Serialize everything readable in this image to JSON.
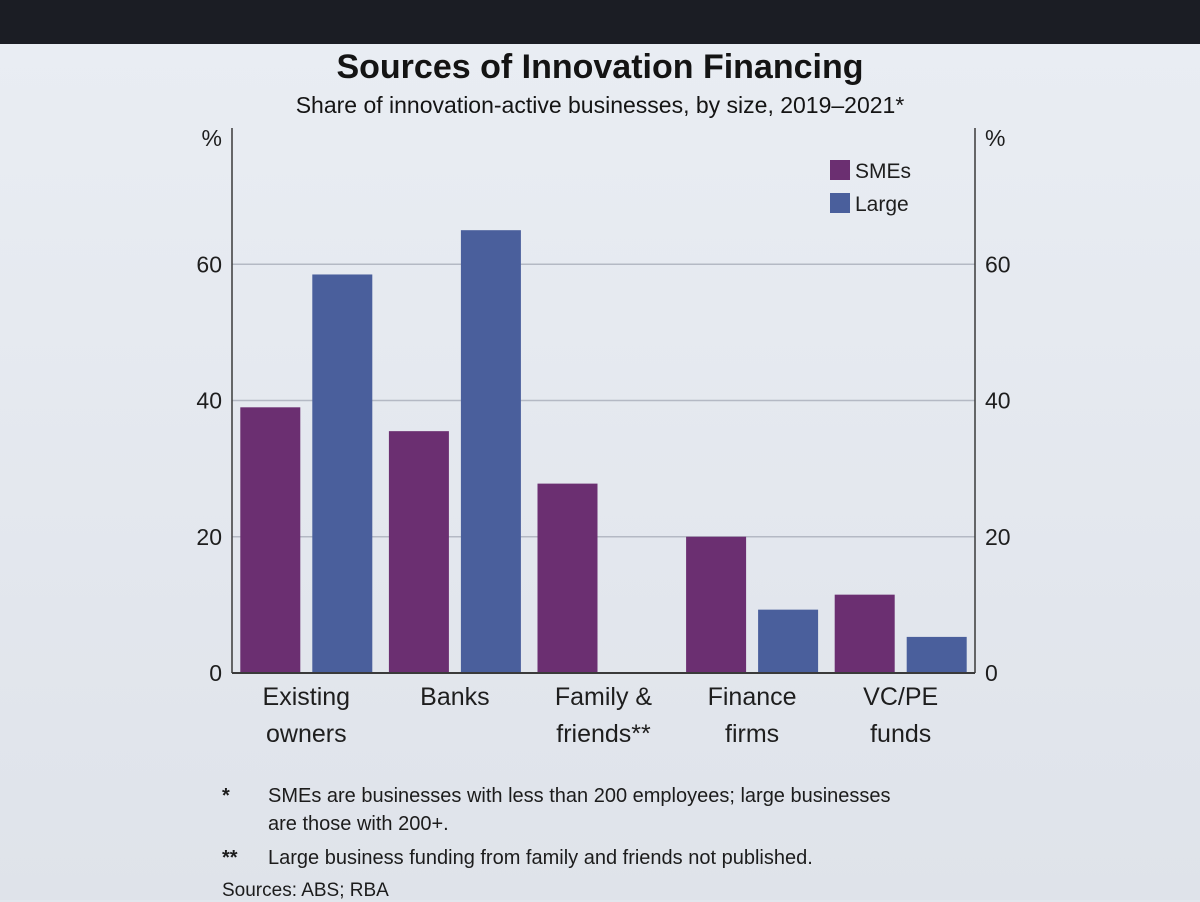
{
  "title": "Sources of Innovation Financing",
  "subtitle": "Share of innovation-active businesses, by size, 2019–2021*",
  "colors": {
    "smes": "#6b2f71",
    "large": "#4a5f9c",
    "grid": "#b4b9c4",
    "axis": "#3a3a3a"
  },
  "chart_data": {
    "type": "bar",
    "title": "Sources of Innovation Financing",
    "subtitle": "Share of innovation-active businesses, by size, 2019–2021*",
    "categories": [
      [
        "Existing",
        "owners"
      ],
      [
        "Banks"
      ],
      [
        "Family &",
        "friends**"
      ],
      [
        "Finance",
        "firms"
      ],
      [
        "VC/PE",
        "funds"
      ]
    ],
    "series": [
      {
        "name": "SMEs",
        "values": [
          39,
          35.5,
          27.8,
          20,
          11.5
        ]
      },
      {
        "name": "Large",
        "values": [
          58.5,
          65,
          null,
          9.3,
          5.3
        ]
      }
    ],
    "ylabel_left": "%",
    "ylabel_right": "%",
    "ylim": [
      0,
      80
    ],
    "yticks": [
      0,
      20,
      40,
      60
    ],
    "grid": true,
    "legend_position": "top-right"
  },
  "footnotes": [
    {
      "mark": "*",
      "lines": [
        "SMEs are businesses with less than 200 employees; large businesses",
        "are those with 200+."
      ]
    },
    {
      "mark": "**",
      "lines": [
        "Large business funding from family and friends not published."
      ]
    }
  ],
  "sources": "Sources: ABS; RBA"
}
